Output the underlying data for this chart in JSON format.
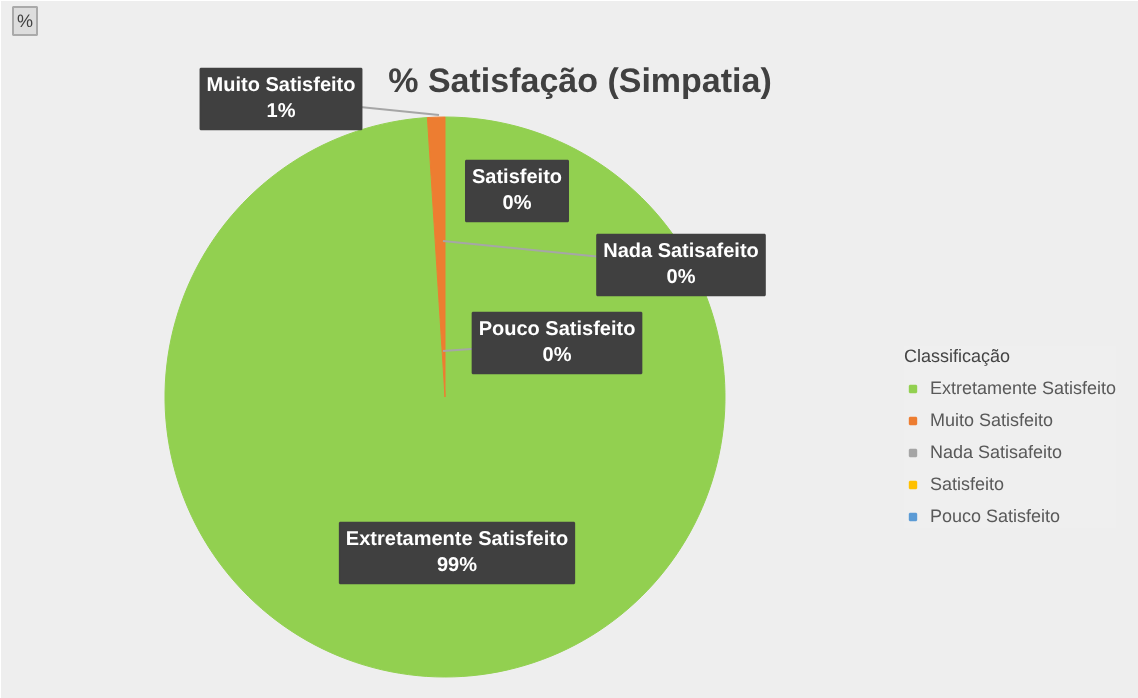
{
  "chart_data": {
    "type": "pie",
    "title": "% Satisfação (Simpatia)",
    "legend_title": "Classificação",
    "legend": "right",
    "categories": [
      "Extretamente Satisfeito",
      "Muito Satisfeito",
      "Nada Satisafeito",
      "Satisfeito",
      "Pouco Satisfeito"
    ],
    "values": [
      99,
      1,
      0,
      0,
      0
    ],
    "colors": [
      "#92d050",
      "#ed7d31",
      "#a5a5a5",
      "#ffc000",
      "#5b9bd5"
    ],
    "value_labels": [
      "99%",
      "1%",
      "0%",
      "0%",
      "0%"
    ],
    "annotations": [
      "%"
    ]
  }
}
